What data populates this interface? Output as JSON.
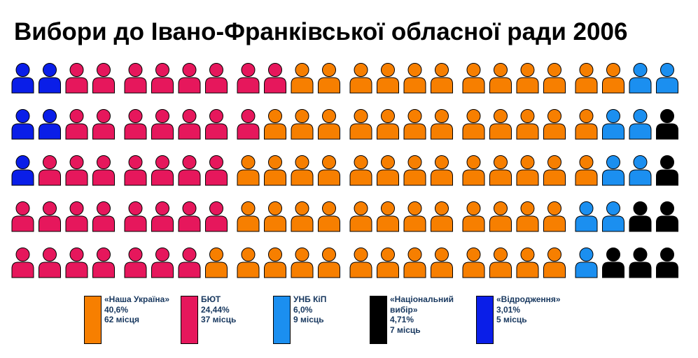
{
  "chart_data": {
    "type": "seats",
    "title": "Вибори до Івано-Франківської обласної ради 2006",
    "categories": [
      "«Наша Україна»",
      "БЮТ",
      "УНБ КіП",
      "«Національний вибір»",
      "«Відродження»"
    ],
    "colors": [
      "#f77f00",
      "#e6175c",
      "#1b8ff0",
      "#000000",
      "#0a1ee8"
    ],
    "percentages": [
      40.6,
      24.44,
      6.0,
      4.71,
      3.01
    ],
    "percentage_labels": [
      "40,6%",
      "24,44%",
      "6,0%",
      "4,71%",
      "3,01%"
    ],
    "values": [
      62,
      37,
      9,
      7,
      5
    ],
    "value_labels": [
      "62 місця",
      "37 місць",
      "9 місць",
      "7 місць",
      "5 місць"
    ]
  }
}
